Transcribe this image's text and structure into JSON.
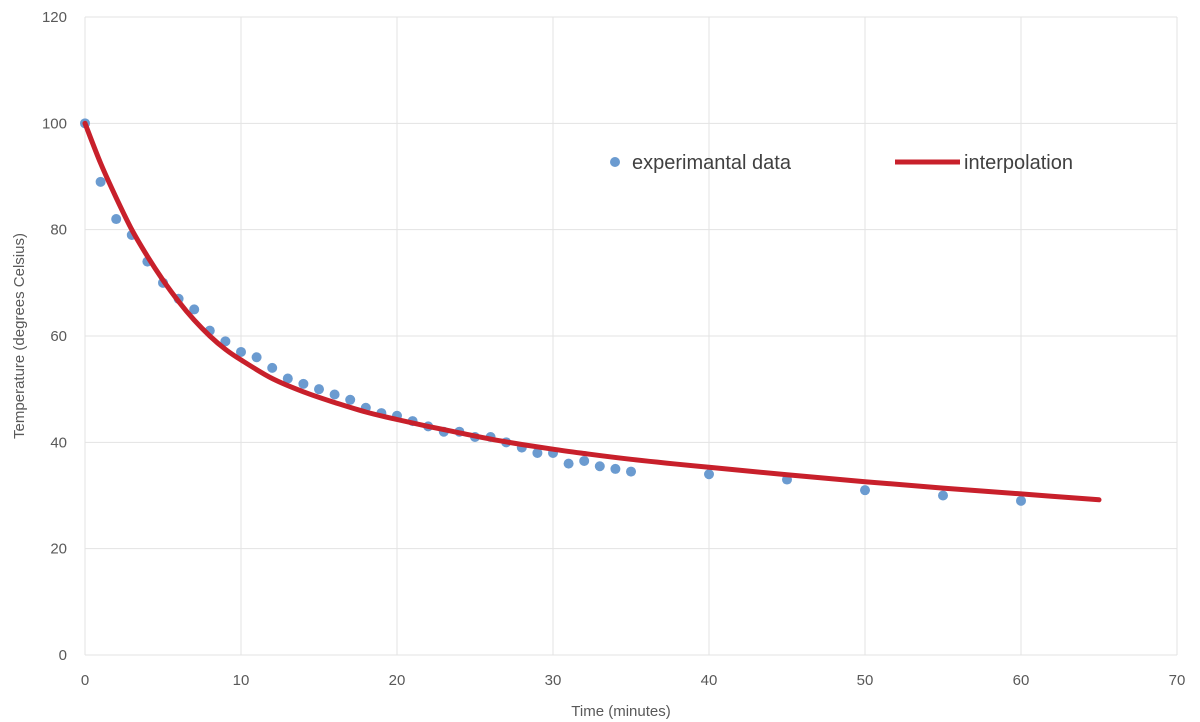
{
  "chart_data": {
    "type": "scatter",
    "xlabel": "Time (minutes)",
    "ylabel": "Temperature (degrees Celsius)",
    "xlim": [
      0,
      70
    ],
    "ylim": [
      0,
      120
    ],
    "x_ticks": [
      0,
      10,
      20,
      30,
      40,
      50,
      60,
      70
    ],
    "y_ticks": [
      0,
      20,
      40,
      60,
      80,
      100,
      120
    ],
    "grid": true,
    "legend_position": "top-right",
    "series": [
      {
        "name": "experimantal data",
        "kind": "scatter",
        "color": "#6b9bd0",
        "x": [
          0,
          1,
          2,
          3,
          4,
          5,
          6,
          7,
          8,
          9,
          10,
          11,
          12,
          13,
          14,
          15,
          16,
          17,
          18,
          19,
          20,
          21,
          22,
          23,
          24,
          25,
          26,
          27,
          28,
          29,
          30,
          31,
          32,
          33,
          34,
          35,
          40,
          45,
          50,
          55,
          60
        ],
        "y": [
          100,
          89,
          82,
          79,
          74,
          70,
          67,
          65,
          61,
          59,
          57,
          56,
          54,
          52,
          51,
          50,
          49,
          48,
          46.5,
          45.5,
          45,
          44,
          43,
          42,
          42,
          41,
          41,
          40,
          39,
          38,
          38,
          36,
          36.5,
          35.5,
          35,
          34.5,
          34,
          33,
          31,
          30,
          29
        ]
      },
      {
        "name": "interpolation",
        "kind": "line",
        "color": "#c8202b",
        "x": [
          0,
          1,
          2,
          3,
          4,
          5,
          6,
          7,
          8,
          9,
          10,
          12,
          14,
          16,
          18,
          20,
          22,
          24,
          26,
          28,
          30,
          32,
          35,
          40,
          45,
          50,
          55,
          60,
          65
        ],
        "y": [
          100,
          92.5,
          86,
          80,
          75,
          70.5,
          66.5,
          63,
          60,
          57.5,
          55.5,
          52,
          49.5,
          47.5,
          45.7,
          44.3,
          43,
          41.8,
          40.6,
          39.6,
          38.7,
          37.9,
          36.8,
          35.3,
          33.9,
          32.6,
          31.4,
          30.3,
          29.2
        ]
      }
    ]
  }
}
